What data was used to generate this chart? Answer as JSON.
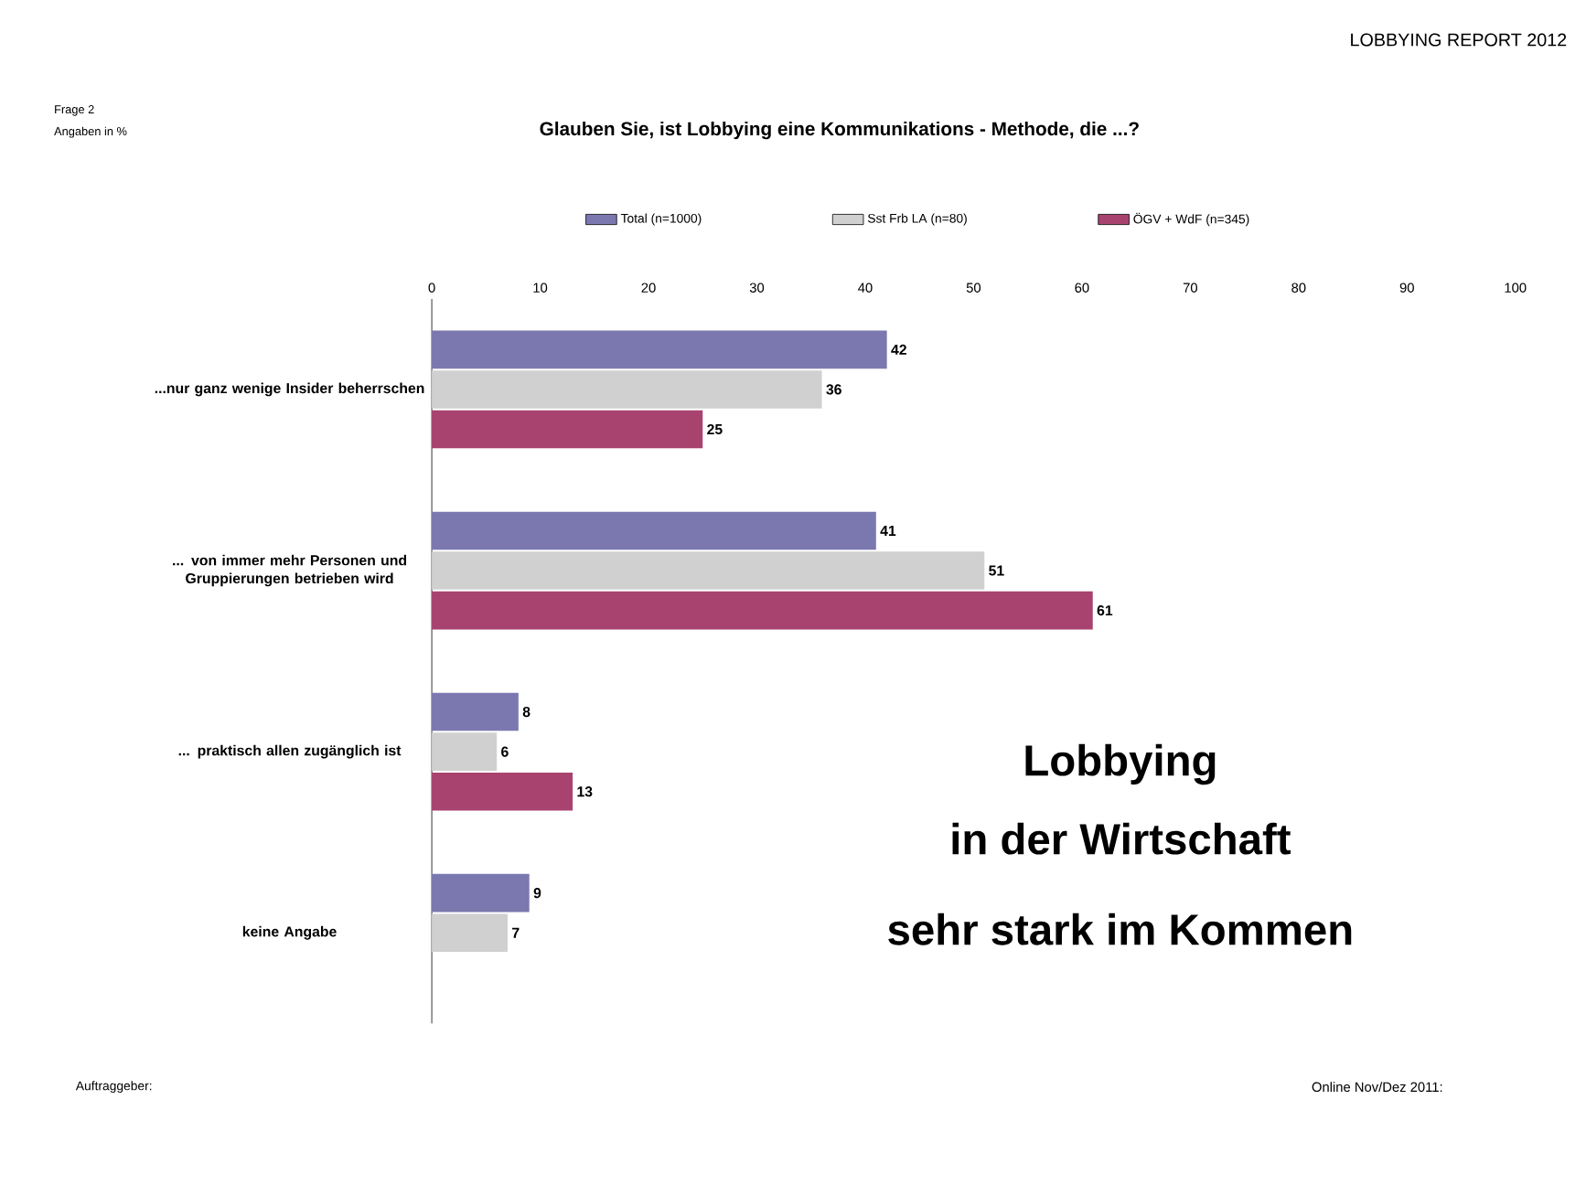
{
  "chart_data": {
    "type": "bar",
    "orientation": "horizontal",
    "title": "Glauben Sie, ist Lobbying eine Kommunikations - Methode, die ...?",
    "categories": [
      "...nur ganz wenige Insider beherrschen",
      "... von immer mehr Personen und Gruppierungen betrieben wird",
      "... praktisch allen zugänglich ist",
      "keine Angabe"
    ],
    "series": [
      {
        "name": "Total (n=1000)",
        "color": "#7b78b0",
        "values": [
          42,
          41,
          8,
          9
        ]
      },
      {
        "name": "Sst Frb LA (n=80)",
        "color": "#d0d0d0",
        "values": [
          36,
          51,
          6,
          7
        ]
      },
      {
        "name": "ÖGV + WdF (n=345)",
        "color": "#a8436f",
        "values": [
          25,
          61,
          13,
          null
        ]
      }
    ],
    "xlim": [
      0,
      100
    ],
    "xticks": [
      0,
      10,
      20,
      30,
      40,
      50,
      60,
      70,
      80,
      90,
      100
    ],
    "data_labels": true,
    "legend": "top",
    "grid": false,
    "annotations": [
      "Frage 2",
      "Angaben in %",
      "LOBBYING REPORT 2012",
      "Lobbying",
      "in der Wirtschaft",
      "sehr stark im Kommen",
      "Auftraggeber:",
      "Online Nov/Dez 2011:"
    ]
  }
}
